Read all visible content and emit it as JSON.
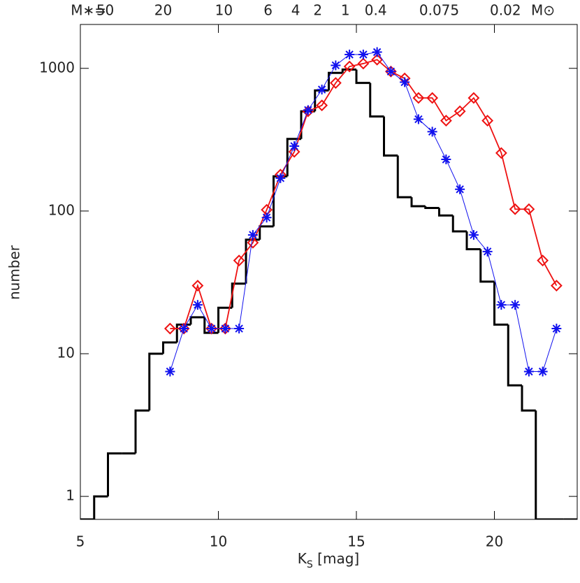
{
  "chart_data": {
    "type": "histogram",
    "xlabel": {
      "main": "K",
      "sub": "S",
      "rest": " [mag]"
    },
    "ylabel": "number",
    "xlim": [
      5,
      23
    ],
    "ylim": [
      0.69,
      2030
    ],
    "log_y": true,
    "xticks": [
      5,
      10,
      15,
      20
    ],
    "yticks": [
      1,
      10,
      100,
      1000
    ],
    "top_axis": {
      "prefix": "M∗=",
      "suffix": "M⊙",
      "ticks": [
        {
          "value": 5.9,
          "label": "50"
        },
        {
          "value": 8.0,
          "label": "20"
        },
        {
          "value": 10.2,
          "label": "10"
        },
        {
          "value": 11.8,
          "label": "6"
        },
        {
          "value": 12.8,
          "label": "4"
        },
        {
          "value": 13.6,
          "label": "2"
        },
        {
          "value": 14.6,
          "label": "1"
        },
        {
          "value": 15.7,
          "label": "0.4"
        },
        {
          "value": 18.0,
          "label": "0.075"
        },
        {
          "value": 20.4,
          "label": "0.02"
        }
      ]
    },
    "bins": [
      5,
      5.5,
      6,
      6.5,
      7,
      7.5,
      8,
      8.5,
      9,
      9.5,
      10,
      10.5,
      11,
      11.5,
      12,
      12.5,
      13,
      13.5,
      14,
      14.5,
      15,
      15.5,
      16,
      16.5,
      17,
      17.5,
      18,
      18.5,
      19,
      19.5,
      20,
      20.5,
      21,
      21.5,
      22,
      22.5,
      23
    ],
    "counts": [
      0,
      1,
      2,
      2,
      4,
      10,
      12,
      16,
      18,
      14,
      21,
      31,
      63,
      78,
      175,
      320,
      500,
      700,
      930,
      980,
      790,
      460,
      245,
      125,
      108,
      105,
      93,
      72,
      54,
      32,
      16,
      6,
      4,
      0,
      0,
      0
    ],
    "hist_color": "#000000",
    "series": [
      {
        "color": "#ee1111",
        "marker": "diamond",
        "x": [
          8.25,
          8.75,
          9.25,
          9.75,
          10.25,
          10.75,
          11.25,
          11.75,
          12.25,
          12.75,
          13.25,
          13.75,
          14.25,
          14.75,
          15.25,
          15.75,
          16.25,
          16.75,
          17.25,
          17.75,
          18.25,
          18.75,
          19.25,
          19.75,
          20.25,
          20.75,
          21.25,
          21.75,
          22.25
        ],
        "values": [
          15,
          15,
          30,
          15,
          15,
          45,
          60,
          102,
          180,
          260,
          500,
          550,
          790,
          1030,
          1080,
          1150,
          950,
          850,
          620,
          620,
          430,
          500,
          620,
          430,
          255,
          103,
          103,
          45,
          30
        ]
      },
      {
        "color": "#1111ee",
        "marker": "asterisk",
        "x": [
          8.25,
          8.75,
          9.25,
          9.75,
          10.25,
          10.75,
          11.25,
          11.75,
          12.25,
          12.75,
          13.25,
          13.75,
          14.25,
          14.75,
          15.25,
          15.75,
          16.25,
          16.75,
          17.25,
          17.75,
          18.25,
          18.75,
          19.25,
          19.75,
          20.25,
          20.75,
          21.25,
          21.75,
          22.25
        ],
        "values": [
          7.5,
          15,
          22,
          15,
          15,
          15,
          68,
          90,
          170,
          285,
          510,
          710,
          1050,
          1250,
          1250,
          1300,
          950,
          800,
          440,
          360,
          230,
          142,
          68,
          52,
          22,
          22,
          7.5,
          7.5,
          15
        ]
      }
    ]
  }
}
